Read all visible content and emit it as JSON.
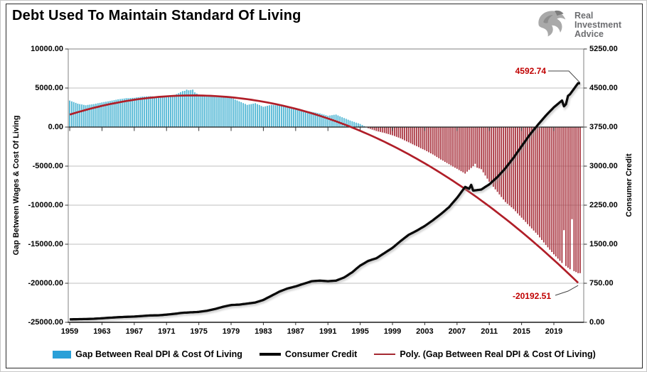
{
  "header": {
    "logo_lines": [
      "Real",
      "Investment",
      "Advice"
    ],
    "logo_color": "#6d6e71"
  },
  "colors": {
    "bar_positive": "#4FB6D4",
    "bar_negative": "#A93540",
    "consumer_credit_line": "#0a0a0a",
    "poly_line": "#B01E28",
    "annotation_red": "#C00000",
    "gridline": "#bfbfbf",
    "plot_border": "#808080",
    "axis_black": "#1a1a1a",
    "legend_bar_swatch": "#2AA0D8"
  },
  "legend": [
    {
      "label": "Gap Between Real DPI & Cost Of Living",
      "swatch": "bar",
      "color": "#2AA0D8"
    },
    {
      "label": "Consumer Credit",
      "swatch": "line",
      "color": "#000000"
    },
    {
      "label": "Poly. (Gap Between Real DPI & Cost Of Living)",
      "swatch": "trend",
      "color": "#A52832"
    }
  ],
  "chart_data": {
    "type": "combo",
    "title": "Debt Used To Maintain Standard Of Living",
    "legend_position": "bottom",
    "grid": true,
    "x_axis": {
      "tick_labels": [
        "1959",
        "1963",
        "1967",
        "1971",
        "1975",
        "1979",
        "1983",
        "1987",
        "1991",
        "1995",
        "1999",
        "2003",
        "2007",
        "2011",
        "2015",
        "2019"
      ],
      "tick_years": [
        1959,
        1963,
        1967,
        1971,
        1975,
        1979,
        1983,
        1987,
        1991,
        1995,
        1999,
        2003,
        2007,
        2011,
        2015,
        2019
      ],
      "range": [
        1959,
        2022.5
      ]
    },
    "left_axis": {
      "label": "Gap Between Wages & Cost Of Living",
      "range": [
        -25000,
        10000
      ],
      "ticks": [
        {
          "label": "10000.00",
          "value": 10000
        },
        {
          "label": "5000.00",
          "value": 5000
        },
        {
          "label": "0.00",
          "value": 0
        },
        {
          "label": "-5000.00",
          "value": -5000
        },
        {
          "label": "-10000.00",
          "value": -10000
        },
        {
          "label": "-15000.00",
          "value": -15000
        },
        {
          "label": "-20000.00",
          "value": -20000
        },
        {
          "label": "-25000.00",
          "value": -25000
        }
      ]
    },
    "right_axis": {
      "label": "Consumer Credit",
      "range": [
        0,
        5250
      ],
      "ticks": [
        {
          "label": "5250.00",
          "value": 5250
        },
        {
          "label": "4500.00",
          "value": 4500
        },
        {
          "label": "3750.00",
          "value": 3750
        },
        {
          "label": "3000.00",
          "value": 3000
        },
        {
          "label": "2250.00",
          "value": 2250
        },
        {
          "label": "1500.00",
          "value": 1500
        },
        {
          "label": "750.00",
          "value": 750
        },
        {
          "label": "0.00",
          "value": 0
        }
      ]
    },
    "series": [
      {
        "name": "Gap Between Real DPI & Cost Of Living",
        "type": "bar",
        "axis": "left",
        "color_positive": "#4FB6D4",
        "color_negative": "#A93540",
        "start_year": 1959,
        "interval_years": 1,
        "values": [
          3400,
          3000,
          2800,
          2950,
          3150,
          3350,
          3550,
          3700,
          3750,
          3900,
          3950,
          3850,
          4000,
          4100,
          4600,
          4750,
          4150,
          4050,
          3900,
          3950,
          3750,
          3300,
          2850,
          3050,
          2600,
          2850,
          2750,
          2550,
          2250,
          2100,
          1950,
          1750,
          1450,
          1600,
          1150,
          750,
          400,
          -150,
          -500,
          -750,
          -1050,
          -1450,
          -1950,
          -2450,
          -2950,
          -3500,
          -4150,
          -4750,
          -5350,
          -5950,
          -5000,
          -5400,
          -7000,
          -8300,
          -9600,
          -10500,
          -11600,
          -12700,
          -13800,
          -15100,
          -16300,
          -17400,
          -18200,
          -18700
        ],
        "quarter_overrides": {
          "1973.5": 4800,
          "1974.25": 4800,
          "2009.25": -4700,
          "2020.25": -13200,
          "2021.25": -11800
        }
      },
      {
        "name": "Consumer Credit",
        "type": "line",
        "axis": "right",
        "color": "#0a0a0a",
        "start_year": 1959,
        "interval_years": 1,
        "values": [
          56,
          60,
          63,
          68,
          78,
          88,
          98,
          105,
          110,
          122,
          132,
          135,
          147,
          163,
          183,
          192,
          200,
          222,
          255,
          298,
          332,
          340,
          360,
          380,
          430,
          510,
          590,
          650,
          690,
          740,
          790,
          800,
          790,
          800,
          860,
          960,
          1090,
          1180,
          1230,
          1330,
          1430,
          1560,
          1680,
          1760,
          1850,
          1960,
          2080,
          2210,
          2390,
          2600,
          2530,
          2550,
          2650,
          2790,
          2960,
          3160,
          3380,
          3600,
          3790,
          3970,
          4130,
          4260,
          4380,
          4592.74
        ],
        "quarter_overrides": {
          "2008.75": 2640,
          "2020.25": 4150,
          "2020.5": 4190
        },
        "end_value": 4592.74
      },
      {
        "name": "Poly. (Gap Between Real DPI & Cost Of Living)",
        "type": "trendline",
        "axis": "left",
        "color": "#B01E28",
        "anchors": [
          [
            1959,
            1600
          ],
          [
            1974.5,
            4050
          ],
          [
            2022.25,
            -20192.51
          ]
        ],
        "end_value": -20192.51
      }
    ],
    "annotations": [
      {
        "text": "4592.74",
        "color": "#C00000",
        "target": "consumer-credit-end"
      },
      {
        "text": "-20192.51",
        "color": "#C00000",
        "target": "poly-trendline-end"
      }
    ]
  }
}
